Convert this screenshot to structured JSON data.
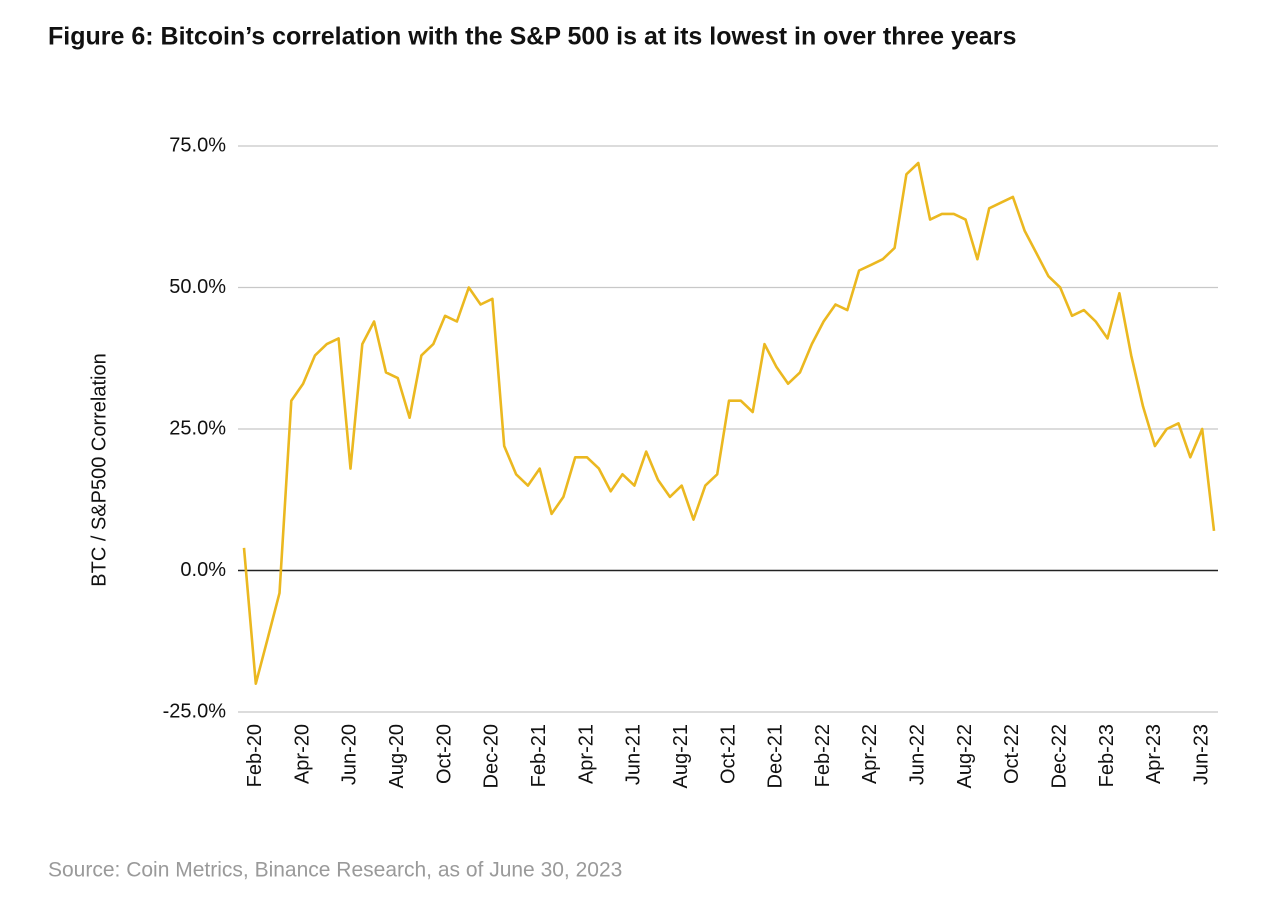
{
  "chart_data": {
    "type": "line",
    "title": "Figure 6: Bitcoin’s correlation with the S&P 500 is at its lowest in over three years",
    "ylabel": "BTC / S&P500 Correlation",
    "source": "Source: Coin Metrics, Binance Research, as of June 30, 2023",
    "categories": [
      null,
      "Feb-20",
      null,
      null,
      null,
      "Apr-20",
      null,
      null,
      null,
      "Jun-20",
      null,
      null,
      null,
      "Aug-20",
      null,
      null,
      null,
      "Oct-20",
      null,
      null,
      null,
      "Dec-20",
      null,
      null,
      null,
      "Feb-21",
      null,
      null,
      null,
      "Apr-21",
      null,
      null,
      null,
      "Jun-21",
      null,
      null,
      null,
      "Aug-21",
      null,
      null,
      null,
      "Oct-21",
      null,
      null,
      null,
      "Dec-21",
      null,
      null,
      null,
      "Feb-22",
      null,
      null,
      null,
      "Apr-22",
      null,
      null,
      null,
      "Jun-22",
      null,
      null,
      null,
      "Aug-22",
      null,
      null,
      null,
      "Oct-22",
      null,
      null,
      null,
      "Dec-22",
      null,
      null,
      null,
      "Feb-23",
      null,
      null,
      null,
      "Apr-23",
      null,
      null,
      null,
      "Jun-23",
      null
    ],
    "series": [
      {
        "name": "BTC / S&P500 Correlation",
        "color": "#ebb820",
        "values": [
          4,
          -20,
          -12,
          -4,
          30,
          33,
          38,
          40,
          41,
          18,
          40,
          44,
          35,
          34,
          27,
          38,
          40,
          45,
          44,
          50,
          47,
          48,
          22,
          17,
          15,
          18,
          10,
          13,
          20,
          20,
          18,
          14,
          17,
          15,
          21,
          16,
          13,
          15,
          9,
          15,
          17,
          30,
          30,
          28,
          40,
          36,
          33,
          35,
          40,
          44,
          47,
          46,
          53,
          54,
          55,
          57,
          70,
          72,
          62,
          63,
          63,
          62,
          55,
          64,
          65,
          66,
          60,
          56,
          52,
          50,
          45,
          46,
          44,
          41,
          49,
          38,
          29,
          22,
          25,
          26,
          20,
          25,
          7
        ]
      }
    ],
    "ylim": [
      -25,
      75
    ],
    "yticks": [
      {
        "value": -25,
        "label": "-25.0%"
      },
      {
        "value": 0,
        "label": "0.0%"
      },
      {
        "value": 25,
        "label": "25.0%"
      },
      {
        "value": 50,
        "label": "50.0%"
      },
      {
        "value": 75,
        "label": "75.0%"
      }
    ],
    "grid": true
  }
}
